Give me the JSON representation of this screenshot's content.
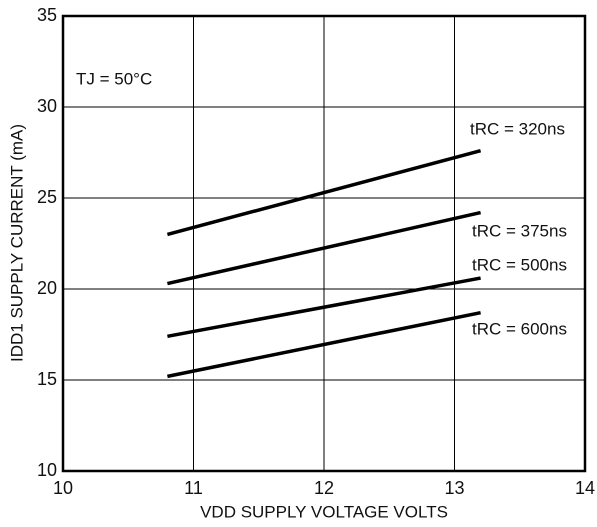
{
  "chart_data": {
    "type": "line",
    "x_label": "VDD SUPPLY VOLTAGE VOLTS",
    "y_label": "IDD1 SUPPLY CURRENT (mA)",
    "annotation": "TJ = 50°C",
    "x": [
      10.8,
      13.2
    ],
    "series": [
      {
        "name": "tRC = 320ns",
        "color": "#000000",
        "values": [
          23.0,
          27.6
        ]
      },
      {
        "name": "tRC = 375ns",
        "color": "#000000",
        "values": [
          20.3,
          24.2
        ]
      },
      {
        "name": "tRC = 500ns",
        "color": "#000000",
        "values": [
          17.4,
          20.6
        ]
      },
      {
        "name": "tRC = 600ns",
        "color": "#000000",
        "values": [
          15.2,
          18.7
        ]
      }
    ],
    "xlim": [
      10,
      14
    ],
    "xticks": [
      10,
      11,
      12,
      13,
      14
    ],
    "ylim": [
      10,
      35
    ],
    "yticks": [
      10,
      15,
      20,
      25,
      30,
      35
    ],
    "grid": true
  }
}
